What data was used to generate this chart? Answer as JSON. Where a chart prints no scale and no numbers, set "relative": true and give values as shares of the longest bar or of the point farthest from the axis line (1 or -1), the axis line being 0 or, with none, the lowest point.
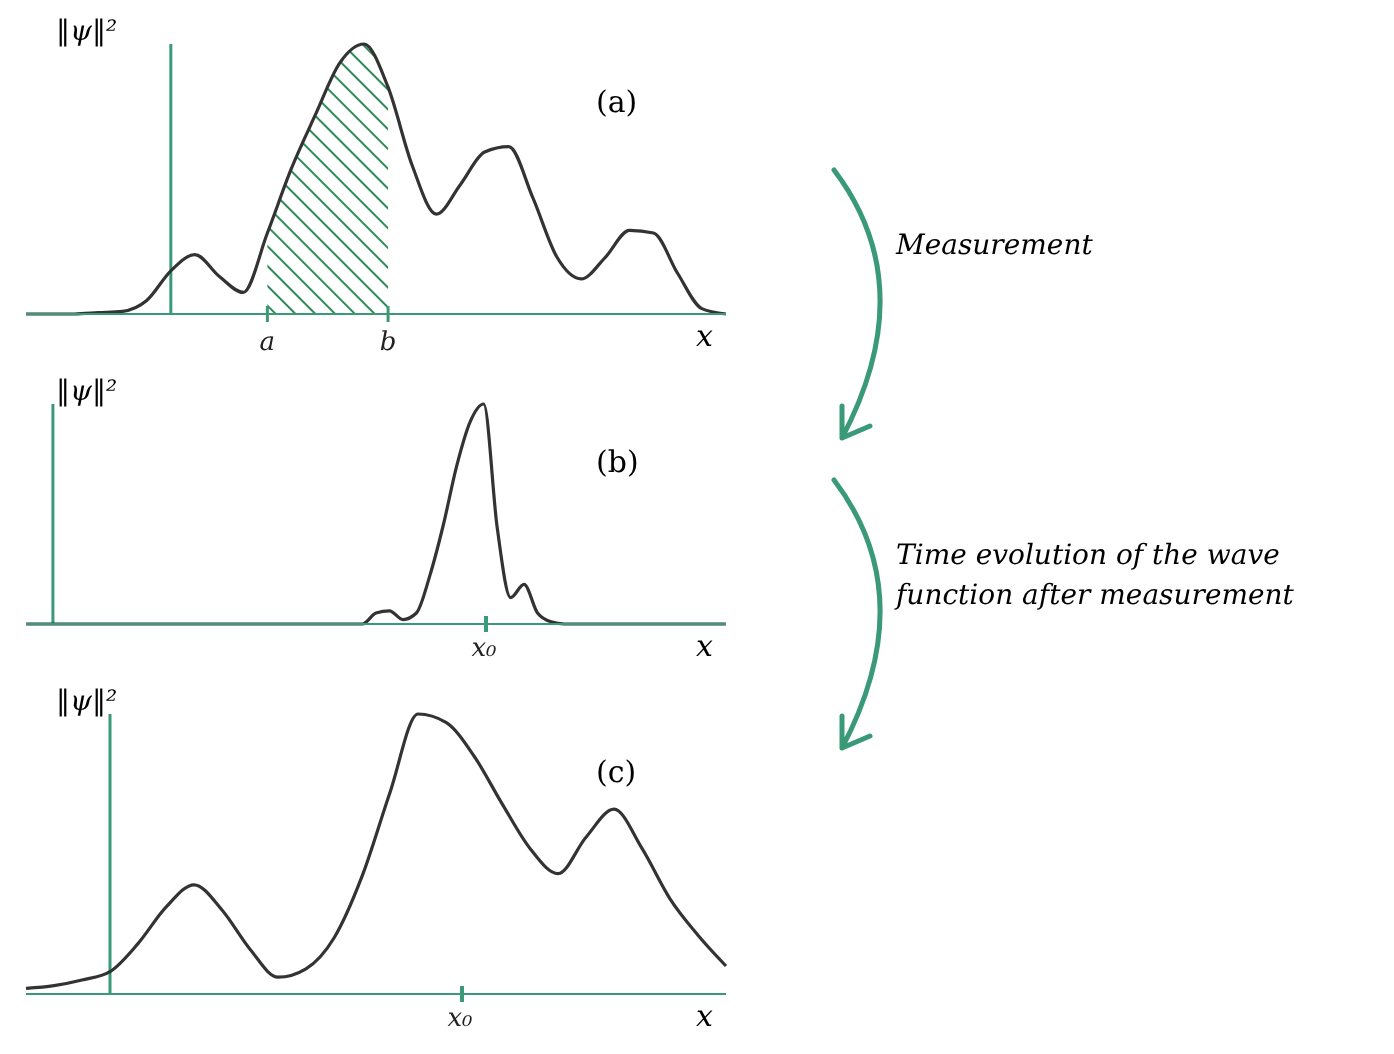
{
  "chart_data": [
    {
      "type": "line",
      "relative": true,
      "ylabel": "‖ψ‖²",
      "xlabel": "x",
      "annotations": [
        "(a)",
        "Measurement"
      ],
      "marker": "none",
      "categories": [
        null,
        null,
        null,
        null,
        null,
        null,
        null,
        null,
        null,
        null,
        "a",
        null,
        null,
        null,
        null,
        "b",
        null,
        null,
        null,
        null,
        null,
        null,
        null,
        null,
        null,
        null,
        null,
        null,
        null,
        null
      ],
      "series": [
        {
          "color": "#333333",
          "values": [
            0,
            0,
            0,
            0.005,
            0.01,
            0.05,
            0.16,
            0.22,
            0.14,
            0.08,
            0.3,
            0.54,
            0.74,
            0.93,
            1.0,
            0.84,
            0.55,
            0.37,
            0.48,
            0.6,
            0.62,
            0.43,
            0.21,
            0.13,
            0.21,
            0.31,
            0.3,
            0.15,
            0.02,
            0
          ]
        },
        {
          "type": "area",
          "color": "#2e8b57",
          "values": [
            null,
            null,
            null,
            null,
            null,
            null,
            null,
            null,
            null,
            null,
            0.3,
            0.54,
            0.74,
            0.93,
            1.0,
            0.84,
            null,
            null,
            null,
            null,
            null,
            null,
            null,
            null,
            null,
            null,
            null,
            null,
            null,
            null
          ]
        }
      ]
    },
    {
      "type": "line",
      "relative": true,
      "ylabel": "‖ψ‖²",
      "xlabel": "x",
      "annotations": [
        "(b)",
        "x₀",
        "Time evolution of the wave function after measurement"
      ],
      "marker": "none",
      "categories": [
        null,
        null,
        null,
        null,
        null,
        null,
        null,
        null,
        null,
        null,
        null,
        null,
        null,
        null,
        null,
        null,
        null,
        null,
        null,
        null,
        null,
        null,
        null,
        null,
        null,
        null,
        null,
        null,
        null,
        null,
        null,
        null,
        null,
        null,
        null,
        null,
        null,
        null,
        null,
        null,
        null,
        null,
        null,
        null,
        null,
        null,
        null,
        null,
        null,
        null,
        null,
        null,
        null
      ],
      "series": [
        {
          "color": "#333333",
          "values": [
            0,
            0,
            0,
            0,
            0,
            0,
            0,
            0,
            0,
            0,
            0,
            0,
            0,
            0,
            0,
            0,
            0,
            0,
            0,
            0,
            0,
            0,
            0,
            0,
            0,
            0,
            0.05,
            0.06,
            0.02,
            0.05,
            0.22,
            0.45,
            0.72,
            0.92,
            1.0,
            0.44,
            0.12,
            0.18,
            0.05,
            0.01,
            0,
            0,
            0,
            0,
            0,
            0,
            0,
            0,
            0,
            0,
            0,
            0,
            0
          ]
        }
      ]
    },
    {
      "type": "line",
      "relative": true,
      "ylabel": "‖ψ‖²",
      "xlabel": "x",
      "annotations": [
        "(c)",
        "x₀"
      ],
      "marker": "none",
      "categories": [
        null,
        null,
        null,
        null,
        null,
        null,
        null,
        null,
        null,
        null,
        null,
        null,
        null,
        null,
        null,
        null,
        null,
        null,
        null,
        null,
        null,
        null,
        null,
        null,
        null,
        null
      ],
      "series": [
        {
          "color": "#333333",
          "values": [
            0.02,
            0.03,
            0.05,
            0.08,
            0.18,
            0.31,
            0.39,
            0.3,
            0.16,
            0.06,
            0.09,
            0.2,
            0.42,
            0.72,
            1.0,
            0.97,
            0.85,
            0.68,
            0.52,
            0.43,
            0.56,
            0.66,
            0.52,
            0.34,
            0.21,
            0.1
          ]
        }
      ]
    }
  ]
}
